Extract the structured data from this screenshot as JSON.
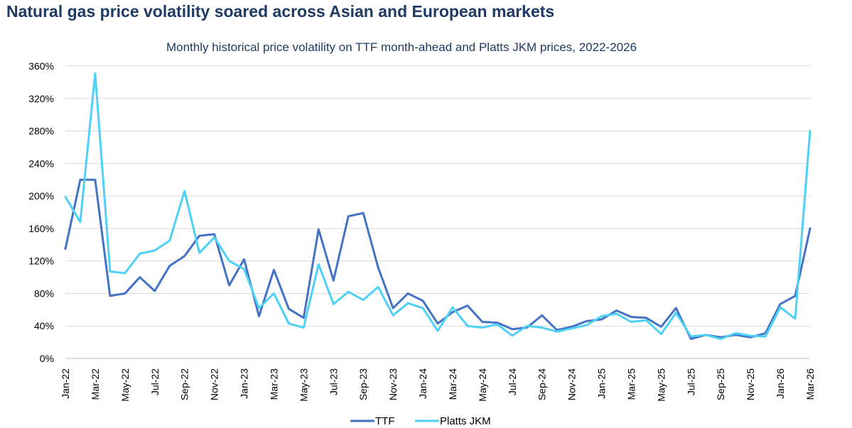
{
  "title": "Natural gas price volatility soared across Asian and European markets",
  "chart_data": {
    "type": "line",
    "title": "Monthly historical price volatility on TTF month-ahead and Platts JKM prices, 2022-2026",
    "xlabel": "",
    "ylabel": "",
    "ylim": [
      0,
      360
    ],
    "yticks": [
      "0%",
      "40%",
      "80%",
      "120%",
      "160%",
      "200%",
      "240%",
      "280%",
      "320%",
      "360%"
    ],
    "ytick_values": [
      0,
      40,
      80,
      120,
      160,
      200,
      240,
      280,
      320,
      360
    ],
    "x": [
      "Jan-22",
      "Feb-22",
      "Mar-22",
      "Apr-22",
      "May-22",
      "Jun-22",
      "Jul-22",
      "Aug-22",
      "Sep-22",
      "Oct-22",
      "Nov-22",
      "Dec-22",
      "Jan-23",
      "Feb-23",
      "Mar-23",
      "Apr-23",
      "May-23",
      "Jun-23",
      "Jul-23",
      "Aug-23",
      "Sep-23",
      "Oct-23",
      "Nov-23",
      "Dec-23",
      "Jan-24",
      "Feb-24",
      "Mar-24",
      "Apr-24",
      "May-24",
      "Jun-24",
      "Jul-24",
      "Aug-24",
      "Sep-24",
      "Oct-24",
      "Nov-24",
      "Dec-24",
      "Jan-25",
      "Feb-25",
      "Mar-25",
      "Apr-25",
      "May-25",
      "Jun-25",
      "Jul-25",
      "Aug-25",
      "Sep-25",
      "Oct-25",
      "Nov-25",
      "Dec-25",
      "Jan-26",
      "Feb-26",
      "Mar-26"
    ],
    "xtick_labels": [
      "Jan-22",
      "Mar-22",
      "May-22",
      "Jul-22",
      "Sep-22",
      "Nov-22",
      "Jan-23",
      "Mar-23",
      "May-23",
      "Jul-23",
      "Sep-23",
      "Nov-23",
      "Jan-24",
      "Mar-24",
      "May-24",
      "Jul-24",
      "Sep-24",
      "Nov-24",
      "Jan-25",
      "Mar-25",
      "May-25",
      "Jul-25",
      "Sep-25",
      "Nov-25",
      "Jan-26",
      "Mar-26"
    ],
    "grid": true,
    "legend_position": "bottom",
    "series": [
      {
        "name": "TTF",
        "color": "#4472c4",
        "values": [
          135,
          220,
          220,
          77,
          80,
          100,
          83,
          114,
          126,
          151,
          153,
          90,
          122,
          52,
          109,
          61,
          50,
          159,
          96,
          175,
          179,
          112,
          62,
          80,
          71,
          43,
          57,
          65,
          45,
          44,
          36,
          38,
          53,
          35,
          39,
          46,
          48,
          59,
          51,
          50,
          39,
          62,
          24,
          29,
          26,
          29,
          26,
          31,
          67,
          77,
          160
        ]
      },
      {
        "name": "Platts JKM",
        "color": "#4fd1f5",
        "values": [
          199,
          168,
          351,
          107,
          105,
          129,
          133,
          145,
          206,
          130,
          149,
          120,
          110,
          62,
          80,
          43,
          38,
          116,
          67,
          82,
          72,
          88,
          53,
          68,
          62,
          34,
          63,
          40,
          38,
          42,
          28,
          40,
          38,
          33,
          37,
          41,
          52,
          55,
          45,
          47,
          30,
          56,
          27,
          29,
          24,
          31,
          28,
          27,
          63,
          49,
          280
        ]
      }
    ]
  }
}
